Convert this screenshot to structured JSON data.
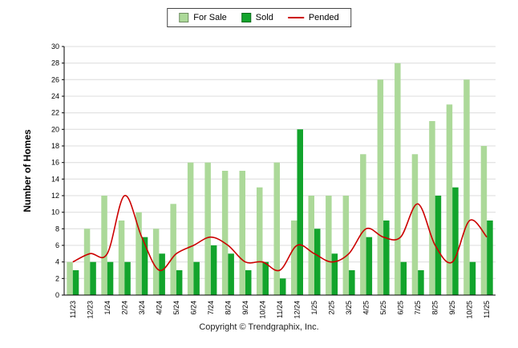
{
  "page": {
    "copyright": "Copyright © Trendgraphix, Inc."
  },
  "legend": {
    "items": [
      {
        "label": "For Sale",
        "swatch": "box",
        "color": "#ACD999"
      },
      {
        "label": "Sold",
        "swatch": "box",
        "color": "#12A42C"
      },
      {
        "label": "Pended",
        "swatch": "line",
        "color": "#CC0000"
      }
    ]
  },
  "chart_data": {
    "type": "bar",
    "title": "",
    "xlabel": "",
    "ylabel": "Number of Homes",
    "ylim": [
      0,
      30
    ],
    "ytick_step": 2,
    "grid": true,
    "legend_position": "top-center",
    "gridline_color": "#DCDCDC",
    "axis_color": "#000000",
    "categories": [
      "11/23",
      "12/23",
      "1/24",
      "2/24",
      "3/24",
      "4/24",
      "5/24",
      "6/24",
      "7/24",
      "8/24",
      "9/24",
      "10/24",
      "11/24",
      "12/24",
      "1/25",
      "2/25",
      "3/25",
      "4/25",
      "5/25",
      "6/25",
      "7/25",
      "8/25",
      "9/25",
      "10/25",
      "11/25"
    ],
    "series": [
      {
        "name": "For Sale",
        "type": "bar",
        "color": "#ACD999",
        "values": [
          4,
          8,
          12,
          9,
          10,
          8,
          11,
          16,
          16,
          15,
          15,
          13,
          16,
          9,
          12,
          12,
          12,
          17,
          26,
          28,
          17,
          21,
          23,
          26,
          18
        ]
      },
      {
        "name": "Sold",
        "type": "bar",
        "color": "#12A42C",
        "values": [
          3,
          4,
          4,
          4,
          7,
          5,
          3,
          4,
          6,
          5,
          3,
          4,
          2,
          20,
          8,
          5,
          3,
          7,
          9,
          4,
          3,
          12,
          13,
          4,
          9
        ]
      },
      {
        "name": "Pended",
        "type": "line",
        "color": "#CC0000",
        "values": [
          4,
          5,
          5,
          12,
          7,
          3,
          5,
          6,
          7,
          6,
          4,
          4,
          3,
          6,
          5,
          4,
          5,
          8,
          7,
          7,
          11,
          6,
          4,
          9,
          7
        ]
      }
    ]
  }
}
